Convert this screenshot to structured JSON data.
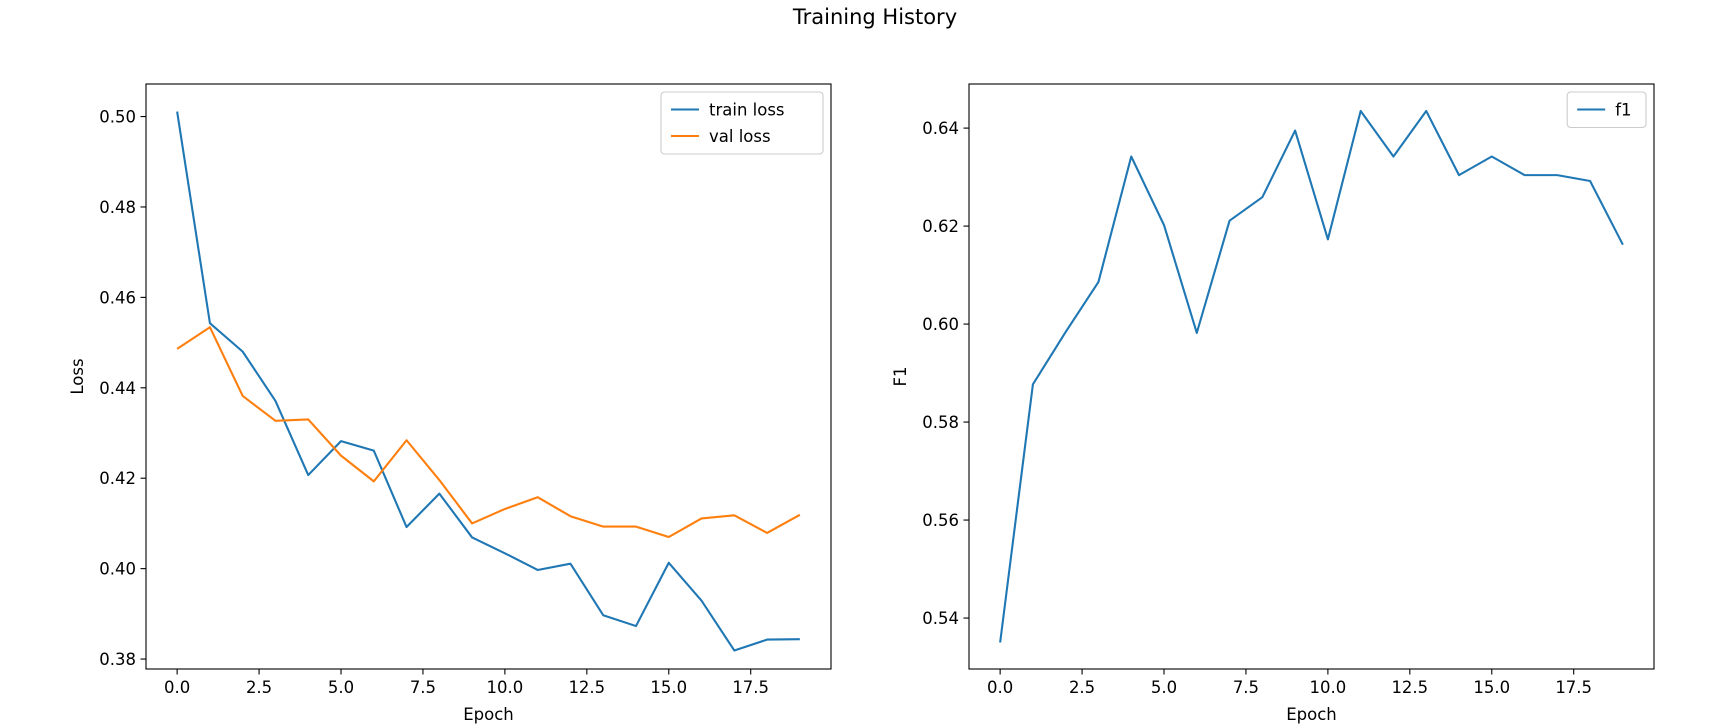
{
  "figure": {
    "title": "Training History"
  },
  "chart_data": [
    {
      "type": "line",
      "xlabel": "Epoch",
      "ylabel": "Loss",
      "xlim": [
        -0.95,
        19.95
      ],
      "ylim": [
        0.3778,
        0.5072
      ],
      "xticks": [
        0.0,
        2.5,
        5.0,
        7.5,
        10.0,
        12.5,
        15.0,
        17.5
      ],
      "xtick_labels": [
        "0.0",
        "2.5",
        "5.0",
        "7.5",
        "10.0",
        "12.5",
        "15.0",
        "17.5"
      ],
      "yticks": [
        0.38,
        0.4,
        0.42,
        0.44,
        0.46,
        0.48,
        0.5
      ],
      "ytick_labels": [
        "0.38",
        "0.40",
        "0.42",
        "0.44",
        "0.46",
        "0.48",
        "0.50"
      ],
      "legend": "top-right",
      "grid": false,
      "x": [
        0,
        1,
        2,
        3,
        4,
        5,
        6,
        7,
        8,
        9,
        10,
        11,
        12,
        13,
        14,
        15,
        16,
        17,
        18,
        19
      ],
      "series": [
        {
          "name": "train loss",
          "color": "#1f77b4",
          "values": [
            0.5011,
            0.4543,
            0.448,
            0.4371,
            0.4207,
            0.4282,
            0.4261,
            0.4092,
            0.4166,
            0.4069,
            0.4034,
            0.3997,
            0.4011,
            0.3897,
            0.3873,
            0.4013,
            0.3929,
            0.3819,
            0.3843,
            0.3844
          ]
        },
        {
          "name": "val loss",
          "color": "#ff7f0e",
          "values": [
            0.4486,
            0.4534,
            0.4382,
            0.4327,
            0.433,
            0.425,
            0.4193,
            0.4284,
            0.4196,
            0.41,
            0.4132,
            0.4158,
            0.4116,
            0.4093,
            0.4093,
            0.407,
            0.4111,
            0.4118,
            0.4079,
            0.4119
          ]
        }
      ]
    },
    {
      "type": "line",
      "xlabel": "Epoch",
      "ylabel": "F1",
      "xlim": [
        -0.95,
        19.95
      ],
      "ylim": [
        0.5296,
        0.649
      ],
      "xticks": [
        0.0,
        2.5,
        5.0,
        7.5,
        10.0,
        12.5,
        15.0,
        17.5
      ],
      "xtick_labels": [
        "0.0",
        "2.5",
        "5.0",
        "7.5",
        "10.0",
        "12.5",
        "15.0",
        "17.5"
      ],
      "yticks": [
        0.54,
        0.56,
        0.58,
        0.6,
        0.62,
        0.64
      ],
      "ytick_labels": [
        "0.54",
        "0.56",
        "0.58",
        "0.60",
        "0.62",
        "0.64"
      ],
      "legend": "top-right",
      "grid": false,
      "x": [
        0,
        1,
        2,
        3,
        4,
        5,
        6,
        7,
        8,
        9,
        10,
        11,
        12,
        13,
        14,
        15,
        16,
        17,
        18,
        19
      ],
      "series": [
        {
          "name": "f1",
          "color": "#1f77b4",
          "values": [
            0.535,
            0.5877,
            0.5984,
            0.6086,
            0.6342,
            0.6202,
            0.5982,
            0.6211,
            0.6259,
            0.6395,
            0.6173,
            0.6435,
            0.6342,
            0.6435,
            0.6304,
            0.6342,
            0.6304,
            0.6304,
            0.6292,
            0.6162
          ]
        }
      ]
    }
  ]
}
